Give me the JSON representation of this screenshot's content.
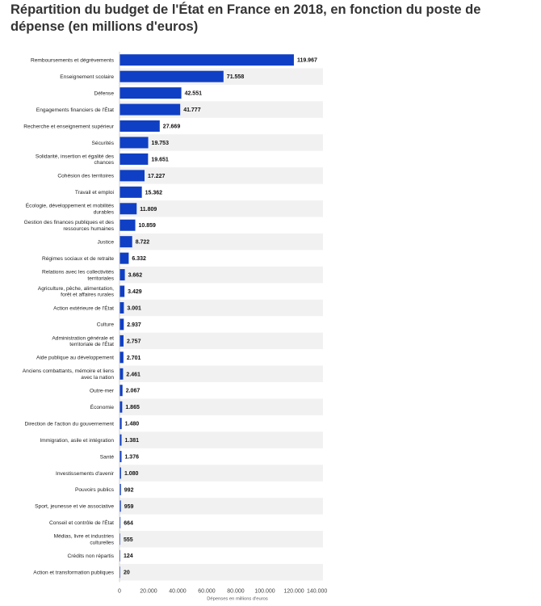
{
  "title": "Répartition du budget de l'État en France en 2018, en fonction du poste de dépense (en millions d'euros)",
  "colors": {
    "bar": "#0f3fc4",
    "band": "#f1f1f1",
    "text": "#222222"
  },
  "chart_data": {
    "type": "bar",
    "orientation": "horizontal",
    "title": "Répartition du budget de l'État en France en 2018, en fonction du poste de dépense (en millions d'euros)",
    "xlabel": "Dépenses en millions d'euros",
    "ylabel": "",
    "xlim": [
      0,
      140000
    ],
    "x_ticks": [
      0,
      20000,
      40000,
      60000,
      80000,
      100000,
      120000,
      140000
    ],
    "x_tick_labels": [
      "0",
      "20.000",
      "40.000",
      "60.000",
      "80.000",
      "100.000",
      "120.000",
      "140.000"
    ],
    "grid": false,
    "categories": [
      "Remboursements et dégrèvements",
      "Enseignement scolaire",
      "Défense",
      "Engagements financiers de l'État",
      "Recherche et enseignement supérieur",
      "Sécurités",
      "Solidarité, insertion et égalité des chances",
      "Cohésion des territoires",
      "Travail et emploi",
      "Écologie, développement et mobilités durables",
      "Gestion des finances publiques et des ressources humaines",
      "Justice",
      "Régimes sociaux et de retraite",
      "Relations avec les collectivités territoriales",
      "Agriculture, pêche, alimentation, forêt et affaires rurales",
      "Action extérieure de l'État",
      "Culture",
      "Administration générale et territoriale de l'État",
      "Aide publique au développement",
      "Anciens combattants, mémoire et liens avec la nation",
      "Outre-mer",
      "Économie",
      "Direction de l'action du gouvernement",
      "Immigration, asile et intégration",
      "Santé",
      "Investissements d'avenir",
      "Pouvoirs publics",
      "Sport, jeunesse et vie associative",
      "Conseil et contrôle de l'État",
      "Médias, livre et industries culturelles",
      "Crédits non répartis",
      "Action et transformation publiques"
    ],
    "values": [
      119967,
      71558,
      42551,
      41777,
      27669,
      19753,
      19651,
      17227,
      15362,
      11809,
      10859,
      8722,
      6332,
      3662,
      3429,
      3001,
      2937,
      2757,
      2701,
      2461,
      2067,
      1865,
      1480,
      1381,
      1376,
      1080,
      992,
      959,
      664,
      555,
      124,
      20
    ],
    "data_labels": [
      "119.967",
      "71.558",
      "42.551",
      "41.777",
      "27.669",
      "19.753",
      "19.651",
      "17.227",
      "15.362",
      "11.809",
      "10.859",
      "8.722",
      "6.332",
      "3.662",
      "3.429",
      "3.001",
      "2.937",
      "2.757",
      "2.701",
      "2.461",
      "2.067",
      "1.865",
      "1.480",
      "1.381",
      "1.376",
      "1.080",
      "992",
      "959",
      "664",
      "555",
      "124",
      "20"
    ]
  }
}
